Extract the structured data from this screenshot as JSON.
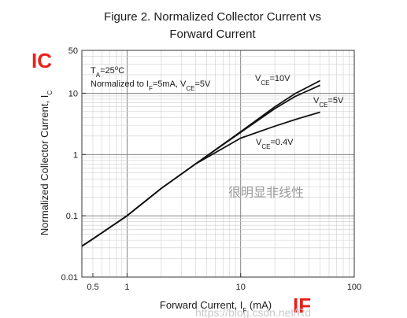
{
  "chart_data": {
    "type": "line",
    "title_line1": "Figure 2. Normalized Collector Current vs",
    "title_line2": "Forward Current",
    "xlabel": {
      "text": "Forward Current, I",
      "sub": "F",
      "suffix": " (mA)"
    },
    "ylabel": {
      "text": "Normalized Collector Current, I",
      "sub": "C"
    },
    "xscale": "log",
    "yscale": "log",
    "xlim": [
      0.4,
      100
    ],
    "ylim": [
      0.01,
      50
    ],
    "grid": true,
    "x_ticks": [
      {
        "value": 0.5,
        "label": "0.5"
      },
      {
        "value": 1,
        "label": "1"
      },
      {
        "value": 10,
        "label": "10"
      },
      {
        "value": 100,
        "label": "100"
      }
    ],
    "y_ticks": [
      {
        "value": 0.01,
        "label": "0.01"
      },
      {
        "value": 0.1,
        "label": "0.1"
      },
      {
        "value": 1,
        "label": "1"
      },
      {
        "value": 10,
        "label": "10"
      },
      {
        "value": 50,
        "label": "50"
      }
    ],
    "conditions": {
      "line1": {
        "parts": [
          [
            "T",
            ""
          ],
          [
            "A",
            "sub"
          ],
          [
            "=25",
            ""
          ],
          [
            "o",
            "sup"
          ],
          [
            "C",
            ""
          ]
        ]
      },
      "line2": {
        "parts": [
          [
            "Normalized to I",
            ""
          ],
          [
            "F",
            "sub"
          ],
          [
            "=5mA, V",
            ""
          ],
          [
            "CE",
            "sub"
          ],
          [
            "=5V",
            ""
          ]
        ]
      }
    },
    "series": [
      {
        "name": "VCE=10V",
        "label_parts": [
          [
            "V",
            ""
          ],
          [
            "CE",
            "sub"
          ],
          [
            "=10V",
            ""
          ]
        ],
        "x": [
          0.4,
          0.5,
          1,
          2,
          4,
          10,
          20,
          30,
          50
        ],
        "y": [
          0.032,
          0.042,
          0.1,
          0.28,
          0.7,
          2.35,
          6.0,
          9.8,
          16.0
        ]
      },
      {
        "name": "VCE=5V",
        "label_parts": [
          [
            "V",
            ""
          ],
          [
            "CE",
            "sub"
          ],
          [
            "=5V",
            ""
          ]
        ],
        "x": [
          0.4,
          0.5,
          1,
          2,
          4,
          10,
          20,
          30,
          50
        ],
        "y": [
          0.032,
          0.042,
          0.1,
          0.28,
          0.7,
          2.3,
          5.6,
          8.8,
          13.5
        ]
      },
      {
        "name": "VCE=0.4V",
        "label_parts": [
          [
            "V",
            ""
          ],
          [
            "CE",
            "sub"
          ],
          [
            "=0.4V",
            ""
          ]
        ],
        "x": [
          0.4,
          0.5,
          1,
          2,
          4,
          10,
          20,
          30,
          50
        ],
        "y": [
          0.032,
          0.042,
          0.1,
          0.28,
          0.7,
          1.85,
          2.9,
          3.7,
          4.9
        ]
      }
    ]
  },
  "overlay": {
    "ic_label": "IC",
    "if_label": "IF",
    "watermark_cn": "很明显非线性",
    "watermark_url": "https://blog.csdn.net/Rd"
  }
}
